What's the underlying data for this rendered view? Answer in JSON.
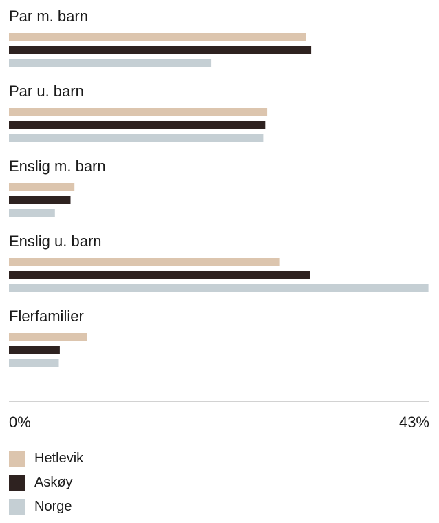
{
  "chart_data": {
    "type": "bar",
    "orientation": "horizontal",
    "categories": [
      "Par m. barn",
      "Par u. barn",
      "Enslig m. barn",
      "Enslig u. barn",
      "Flerfamilier"
    ],
    "series": [
      {
        "name": "Hetlevik",
        "color": "#dcc5ae",
        "values": [
          30.4,
          26.4,
          6.7,
          27.7,
          8.0
        ]
      },
      {
        "name": "Askøy",
        "color": "#2e2220",
        "values": [
          30.9,
          26.2,
          6.3,
          30.8,
          5.2
        ]
      },
      {
        "name": "Norge",
        "color": "#c5cfd4",
        "values": [
          20.7,
          26.0,
          4.7,
          42.9,
          5.1
        ]
      }
    ],
    "xlim": [
      0,
      43
    ],
    "x_tick_labels": [
      "0%",
      "43%"
    ],
    "legend_position": "bottom-left",
    "grid": false,
    "title": "",
    "xlabel": "",
    "ylabel": ""
  }
}
